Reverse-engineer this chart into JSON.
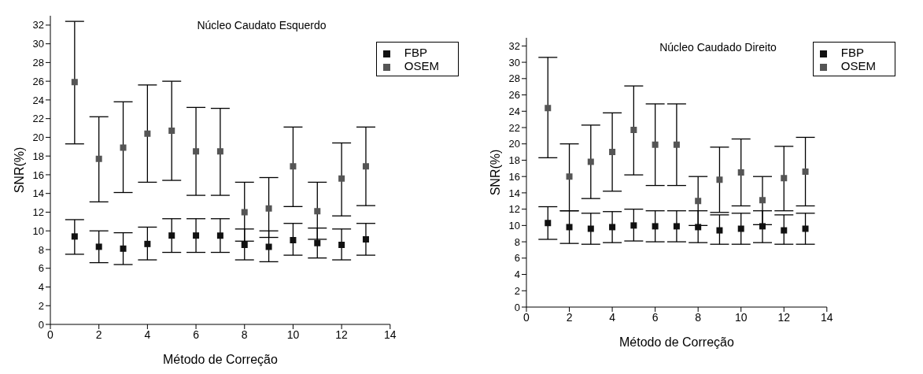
{
  "chart_data": [
    {
      "type": "scatter",
      "title": "Núcleo Caudato Esquerdo",
      "xlabel": "Método de Correção",
      "ylabel": "SNR(%)",
      "x": [
        1,
        2,
        3,
        4,
        5,
        6,
        7,
        8,
        9,
        10,
        11,
        12,
        13
      ],
      "xlim": [
        0,
        14
      ],
      "xticks": [
        0,
        2,
        4,
        6,
        8,
        10,
        12,
        14
      ],
      "ylim": [
        0,
        33
      ],
      "yticks": [
        0,
        2,
        4,
        6,
        8,
        10,
        12,
        14,
        16,
        18,
        20,
        22,
        24,
        26,
        28,
        30,
        32
      ],
      "marker": "square",
      "legend": "top right",
      "grid": false,
      "series": [
        {
          "name": "FBP",
          "color": "#111111",
          "values": [
            9.4,
            8.3,
            8.1,
            8.6,
            9.5,
            9.5,
            9.5,
            8.5,
            8.3,
            9.0,
            8.7,
            8.5,
            9.1
          ],
          "errors": [
            [
              7.5,
              11.2
            ],
            [
              6.6,
              10.0
            ],
            [
              6.4,
              9.8
            ],
            [
              6.9,
              10.4
            ],
            [
              7.7,
              11.3
            ],
            [
              7.7,
              11.3
            ],
            [
              7.7,
              11.3
            ],
            [
              6.9,
              10.2
            ],
            [
              6.7,
              10.0
            ],
            [
              7.4,
              10.8
            ],
            [
              7.1,
              10.3
            ],
            [
              6.9,
              10.2
            ],
            [
              7.4,
              10.8
            ]
          ]
        },
        {
          "name": "OSEM",
          "color": "#555555",
          "values": [
            25.9,
            17.7,
            18.9,
            20.4,
            20.7,
            18.5,
            18.5,
            12.0,
            12.4,
            16.9,
            12.1,
            15.6,
            16.9
          ],
          "errors": [
            [
              19.3,
              32.4
            ],
            [
              13.1,
              22.2
            ],
            [
              14.1,
              23.8
            ],
            [
              15.2,
              25.6
            ],
            [
              15.4,
              26.0
            ],
            [
              13.8,
              23.2
            ],
            [
              13.8,
              23.1
            ],
            [
              8.9,
              15.2
            ],
            [
              9.3,
              15.7
            ],
            [
              12.6,
              21.1
            ],
            [
              9.1,
              15.2
            ],
            [
              11.6,
              19.4
            ],
            [
              12.7,
              21.1
            ]
          ]
        }
      ]
    },
    {
      "type": "scatter",
      "title": "Núcleo Caudado Direito",
      "xlabel": "Método de Correção",
      "ylabel": "SNR(%)",
      "x": [
        1,
        2,
        3,
        4,
        5,
        6,
        7,
        8,
        9,
        10,
        11,
        12,
        13
      ],
      "xlim": [
        0,
        14
      ],
      "xticks": [
        0,
        2,
        4,
        6,
        8,
        10,
        12,
        14
      ],
      "ylim": [
        0,
        33
      ],
      "yticks": [
        0,
        2,
        4,
        6,
        8,
        10,
        12,
        14,
        16,
        18,
        20,
        22,
        24,
        26,
        28,
        30,
        32
      ],
      "marker": "square",
      "legend": "top right",
      "grid": false,
      "series": [
        {
          "name": "FBP",
          "color": "#111111",
          "values": [
            10.3,
            9.8,
            9.6,
            9.8,
            10.0,
            9.9,
            9.9,
            9.8,
            9.4,
            9.6,
            9.9,
            9.4,
            9.6
          ],
          "errors": [
            [
              8.3,
              12.3
            ],
            [
              7.8,
              11.8
            ],
            [
              7.7,
              11.5
            ],
            [
              7.9,
              11.7
            ],
            [
              8.1,
              12.0
            ],
            [
              8.0,
              11.8
            ],
            [
              8.0,
              11.8
            ],
            [
              7.9,
              11.8
            ],
            [
              7.7,
              11.3
            ],
            [
              7.7,
              11.5
            ],
            [
              7.9,
              11.8
            ],
            [
              7.7,
              11.3
            ],
            [
              7.7,
              11.5
            ]
          ]
        },
        {
          "name": "OSEM",
          "color": "#555555",
          "values": [
            24.4,
            16.0,
            17.8,
            19.0,
            21.7,
            19.9,
            19.9,
            13.0,
            15.6,
            16.5,
            13.1,
            15.8,
            16.6
          ],
          "errors": [
            [
              18.3,
              30.6
            ],
            [
              11.8,
              20.0
            ],
            [
              13.3,
              22.3
            ],
            [
              14.2,
              23.8
            ],
            [
              16.2,
              27.1
            ],
            [
              14.9,
              24.9
            ],
            [
              14.9,
              24.9
            ],
            [
              10.0,
              16.0
            ],
            [
              11.6,
              19.6
            ],
            [
              12.4,
              20.6
            ],
            [
              10.1,
              16.0
            ],
            [
              11.8,
              19.7
            ],
            [
              12.4,
              20.8
            ]
          ]
        }
      ]
    }
  ]
}
